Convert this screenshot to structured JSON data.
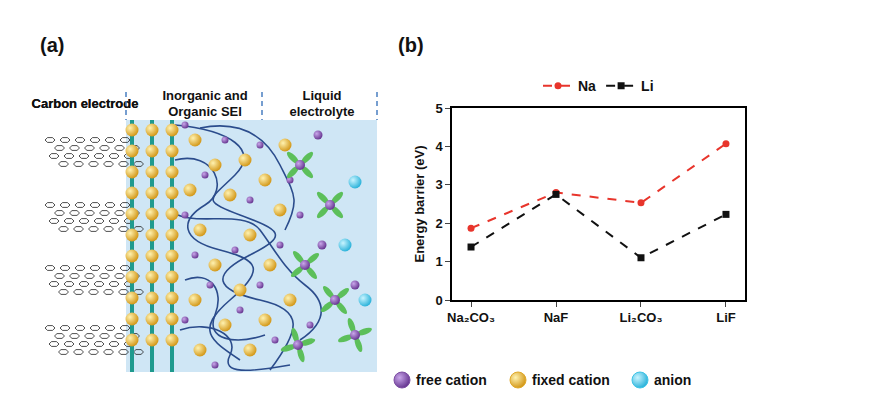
{
  "diagram": {
    "label": "(a)",
    "regions": [
      [
        "Carbon",
        "electrode"
      ],
      [
        "Inorganic and",
        "Organic SEI"
      ],
      [
        "Liquid",
        "electrolyte"
      ]
    ],
    "legend": [
      {
        "label": "free cation",
        "color": "#7d4ea3"
      },
      {
        "label": "fixed cation",
        "color": "#e0a92a"
      },
      {
        "label": "anion",
        "color": "#3ec4e6"
      }
    ]
  },
  "chart_data": {
    "type": "line",
    "label": "(b)",
    "categories": [
      "Na₂CO₃",
      "NaF",
      "Li₂CO₃",
      "LiF"
    ],
    "series": [
      {
        "name": "Na",
        "color": "#e8352c",
        "marker": "circle",
        "line_style": "dash",
        "values": [
          1.87,
          2.8,
          2.53,
          4.07
        ]
      },
      {
        "name": "Li",
        "color": "#111111",
        "marker": "square",
        "line_style": "dash",
        "values": [
          1.38,
          2.75,
          1.1,
          2.23
        ]
      }
    ],
    "y_label": "Energy barrier (eV)",
    "ylim": [
      0,
      5
    ],
    "yticks": [
      0,
      1,
      2,
      3,
      4,
      5
    ],
    "legend": "top",
    "grid": false
  }
}
